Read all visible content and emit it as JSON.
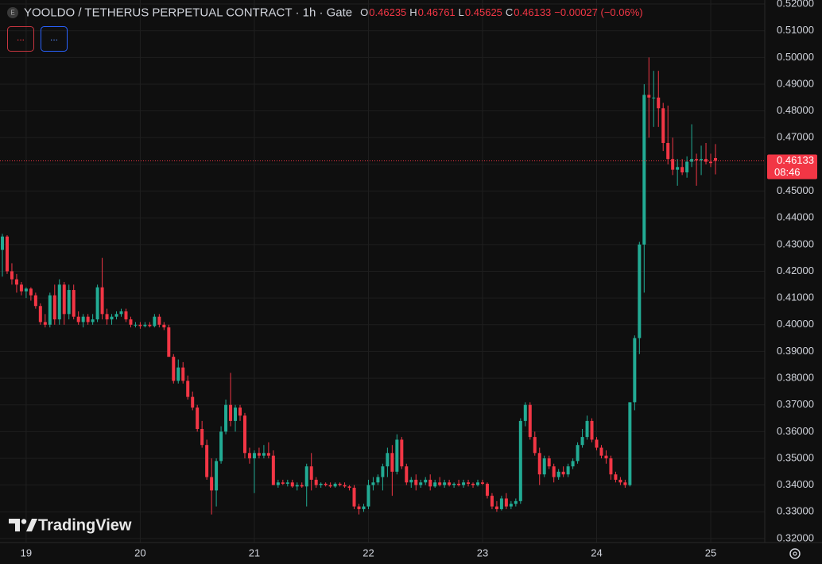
{
  "chart_data": {
    "type": "candlestick",
    "title": "YOOLDO / TETHERUS PERPETUAL CONTRACT · 1h · Gate",
    "badge": "E",
    "legend_labels": [
      "O",
      "H",
      "L",
      "C"
    ],
    "change_label": "−0.00027 (−0.06%)",
    "indicator_buttons": [
      "...",
      "..."
    ],
    "countdown": "08:46",
    "watermark": "TradingView",
    "up_color": "#22ab94",
    "down_color": "#f23645",
    "grid": true,
    "categories": [
      null,
      null,
      null,
      null,
      null,
      "19",
      null,
      null,
      null,
      null,
      null,
      null,
      null,
      null,
      null,
      null,
      null,
      null,
      null,
      null,
      null,
      null,
      null,
      null,
      null,
      null,
      null,
      null,
      null,
      "20",
      null,
      null,
      null,
      null,
      null,
      null,
      null,
      null,
      null,
      null,
      null,
      null,
      null,
      null,
      null,
      null,
      null,
      null,
      null,
      null,
      null,
      null,
      null,
      "21",
      null,
      null,
      null,
      null,
      null,
      null,
      null,
      null,
      null,
      null,
      null,
      null,
      null,
      null,
      null,
      null,
      null,
      null,
      null,
      null,
      null,
      null,
      null,
      "22",
      null,
      null,
      null,
      null,
      null,
      null,
      null,
      null,
      null,
      null,
      null,
      null,
      null,
      null,
      null,
      null,
      null,
      null,
      null,
      null,
      null,
      null,
      null,
      "23",
      null,
      null,
      null,
      null,
      null,
      null,
      null,
      null,
      null,
      null,
      null,
      null,
      null,
      null,
      null,
      null,
      null,
      null,
      null,
      null,
      null,
      null,
      null,
      "24",
      null,
      null,
      null,
      null,
      null,
      null,
      null,
      null,
      null,
      null,
      null,
      null,
      null,
      null,
      null,
      null,
      null,
      null,
      null,
      null,
      null,
      null,
      null,
      "25",
      null
    ],
    "open": [
      0.428,
      0.433,
      0.42,
      0.417,
      0.415,
      0.4125,
      0.4135,
      0.411,
      0.407,
      0.401,
      0.4,
      0.411,
      0.402,
      0.415,
      0.404,
      0.413,
      0.403,
      0.401,
      0.403,
      0.401,
      0.402,
      0.414,
      0.404,
      0.402,
      0.403,
      0.404,
      0.405,
      0.402,
      0.4,
      0.4,
      0.3995,
      0.4,
      0.3995,
      0.403,
      0.4,
      0.399,
      0.388,
      0.379,
      0.384,
      0.379,
      0.373,
      0.369,
      0.361,
      0.355,
      0.343,
      0.338,
      0.349,
      0.36,
      0.37,
      0.364,
      0.369,
      0.366,
      0.352,
      0.35,
      0.352,
      0.351,
      0.352,
      0.351,
      0.34,
      0.341,
      0.3405,
      0.341,
      0.3395,
      0.34,
      0.3395,
      0.347,
      0.342,
      0.34,
      0.3405,
      0.34,
      0.3395,
      0.3405,
      0.34,
      0.3395,
      0.339,
      0.332,
      0.331,
      0.332,
      0.34,
      0.341,
      0.343,
      0.347,
      0.352,
      0.345,
      0.357,
      0.347,
      0.341,
      0.342,
      0.34,
      0.341,
      0.342,
      0.3395,
      0.341,
      0.34,
      0.341,
      0.34,
      0.3405,
      0.34,
      0.341,
      0.3405,
      0.34,
      0.341,
      0.3405,
      0.336,
      0.332,
      0.331,
      0.335,
      0.332,
      0.333,
      0.334,
      0.364,
      0.37,
      0.358,
      0.352,
      0.344,
      0.35,
      0.347,
      0.343,
      0.345,
      0.344,
      0.347,
      0.349,
      0.355,
      0.358,
      0.364,
      0.357,
      0.354,
      0.351,
      0.35,
      0.344,
      0.342,
      0.341,
      0.34,
      0.371,
      0.395,
      0.43,
      0.486,
      0.485,
      0.485,
      0.481,
      0.468,
      0.462,
      0.458,
      0.459,
      0.457,
      0.461,
      0.462,
      0.4615,
      0.462,
      0.461,
      0.46235
    ],
    "high": [
      0.434,
      0.4335,
      0.423,
      0.419,
      0.416,
      0.414,
      0.414,
      0.412,
      0.408,
      0.404,
      0.412,
      0.415,
      0.417,
      0.416,
      0.415,
      0.415,
      0.405,
      0.404,
      0.404,
      0.404,
      0.415,
      0.425,
      0.406,
      0.404,
      0.405,
      0.406,
      0.406,
      0.403,
      0.401,
      0.401,
      0.401,
      0.401,
      0.404,
      0.404,
      0.401,
      0.4,
      0.389,
      0.387,
      0.386,
      0.381,
      0.375,
      0.37,
      0.364,
      0.357,
      0.35,
      0.35,
      0.362,
      0.372,
      0.382,
      0.37,
      0.37,
      0.367,
      0.354,
      0.353,
      0.354,
      0.355,
      0.356,
      0.353,
      0.342,
      0.342,
      0.342,
      0.342,
      0.341,
      0.341,
      0.348,
      0.352,
      0.343,
      0.341,
      0.341,
      0.341,
      0.341,
      0.341,
      0.341,
      0.34,
      0.34,
      0.333,
      0.333,
      0.342,
      0.343,
      0.344,
      0.348,
      0.354,
      0.355,
      0.359,
      0.358,
      0.348,
      0.343,
      0.344,
      0.342,
      0.343,
      0.344,
      0.342,
      0.343,
      0.342,
      0.342,
      0.341,
      0.342,
      0.342,
      0.342,
      0.341,
      0.342,
      0.342,
      0.341,
      0.337,
      0.334,
      0.336,
      0.337,
      0.334,
      0.335,
      0.365,
      0.371,
      0.371,
      0.36,
      0.354,
      0.351,
      0.351,
      0.348,
      0.346,
      0.347,
      0.348,
      0.35,
      0.356,
      0.361,
      0.366,
      0.365,
      0.358,
      0.355,
      0.353,
      0.351,
      0.345,
      0.343,
      0.342,
      0.371,
      0.396,
      0.431,
      0.49,
      0.5,
      0.495,
      0.495,
      0.483,
      0.482,
      0.47,
      0.462,
      0.462,
      0.463,
      0.475,
      0.464,
      0.467,
      0.468,
      0.464,
      0.46761
    ],
    "low": [
      0.418,
      0.419,
      0.415,
      0.412,
      0.411,
      0.41,
      0.409,
      0.406,
      0.4,
      0.399,
      0.399,
      0.4,
      0.4,
      0.4,
      0.402,
      0.402,
      0.4,
      0.399,
      0.4,
      0.4,
      0.401,
      0.402,
      0.4,
      0.4,
      0.402,
      0.403,
      0.401,
      0.399,
      0.399,
      0.3985,
      0.399,
      0.399,
      0.399,
      0.399,
      0.398,
      0.388,
      0.378,
      0.378,
      0.378,
      0.372,
      0.368,
      0.36,
      0.354,
      0.342,
      0.329,
      0.332,
      0.348,
      0.359,
      0.362,
      0.36,
      0.364,
      0.35,
      0.348,
      0.337,
      0.35,
      0.35,
      0.35,
      0.34,
      0.339,
      0.34,
      0.3395,
      0.339,
      0.338,
      0.339,
      0.332,
      0.338,
      0.339,
      0.339,
      0.3395,
      0.339,
      0.339,
      0.3395,
      0.339,
      0.338,
      0.331,
      0.329,
      0.33,
      0.331,
      0.338,
      0.34,
      0.338,
      0.343,
      0.336,
      0.344,
      0.346,
      0.34,
      0.339,
      0.338,
      0.339,
      0.34,
      0.338,
      0.339,
      0.3395,
      0.339,
      0.3395,
      0.339,
      0.3395,
      0.339,
      0.3395,
      0.339,
      0.3395,
      0.34,
      0.335,
      0.331,
      0.33,
      0.3305,
      0.331,
      0.331,
      0.332,
      0.333,
      0.362,
      0.357,
      0.351,
      0.34,
      0.343,
      0.346,
      0.341,
      0.342,
      0.343,
      0.343,
      0.346,
      0.348,
      0.354,
      0.357,
      0.356,
      0.353,
      0.35,
      0.348,
      0.342,
      0.341,
      0.34,
      0.339,
      0.3395,
      0.368,
      0.389,
      0.412,
      0.47,
      0.474,
      0.474,
      0.465,
      0.46,
      0.456,
      0.452,
      0.456,
      0.455,
      0.459,
      0.452,
      0.456,
      0.46,
      0.459,
      0.45625
    ],
    "close": [
      0.433,
      0.42,
      0.417,
      0.415,
      0.4125,
      0.4135,
      0.411,
      0.407,
      0.401,
      0.4,
      0.411,
      0.402,
      0.415,
      0.404,
      0.413,
      0.403,
      0.401,
      0.403,
      0.401,
      0.402,
      0.414,
      0.404,
      0.402,
      0.403,
      0.404,
      0.405,
      0.402,
      0.4,
      0.4,
      0.3995,
      0.4,
      0.3995,
      0.403,
      0.4,
      0.399,
      0.388,
      0.379,
      0.384,
      0.379,
      0.373,
      0.369,
      0.361,
      0.355,
      0.343,
      0.338,
      0.349,
      0.36,
      0.37,
      0.364,
      0.369,
      0.366,
      0.352,
      0.35,
      0.352,
      0.351,
      0.352,
      0.351,
      0.34,
      0.341,
      0.3405,
      0.341,
      0.3395,
      0.34,
      0.3395,
      0.347,
      0.342,
      0.34,
      0.3405,
      0.34,
      0.3395,
      0.3405,
      0.34,
      0.3395,
      0.339,
      0.332,
      0.331,
      0.332,
      0.34,
      0.341,
      0.343,
      0.347,
      0.352,
      0.345,
      0.357,
      0.347,
      0.341,
      0.342,
      0.34,
      0.341,
      0.342,
      0.3395,
      0.341,
      0.34,
      0.341,
      0.34,
      0.3405,
      0.34,
      0.341,
      0.3405,
      0.34,
      0.341,
      0.3405,
      0.336,
      0.332,
      0.331,
      0.335,
      0.332,
      0.333,
      0.334,
      0.364,
      0.37,
      0.358,
      0.352,
      0.344,
      0.35,
      0.347,
      0.343,
      0.345,
      0.344,
      0.347,
      0.349,
      0.355,
      0.358,
      0.364,
      0.357,
      0.354,
      0.351,
      0.35,
      0.344,
      0.342,
      0.341,
      0.34,
      0.371,
      0.395,
      0.43,
      0.486,
      0.485,
      0.485,
      0.481,
      0.468,
      0.462,
      0.458,
      0.459,
      0.457,
      0.461,
      0.462,
      0.4615,
      0.462,
      0.461,
      0.4605,
      0.46133
    ],
    "ylim": [
      0.3185,
      0.5215
    ],
    "yticks": [
      {
        "value": 0.32,
        "label": "0.32000"
      },
      {
        "value": 0.33,
        "label": "0.33000"
      },
      {
        "value": 0.34,
        "label": "0.34000"
      },
      {
        "value": 0.35,
        "label": "0.35000"
      },
      {
        "value": 0.36,
        "label": "0.36000"
      },
      {
        "value": 0.37,
        "label": "0.37000"
      },
      {
        "value": 0.38,
        "label": "0.38000"
      },
      {
        "value": 0.39,
        "label": "0.39000"
      },
      {
        "value": 0.4,
        "label": "0.40000"
      },
      {
        "value": 0.41,
        "label": "0.41000"
      },
      {
        "value": 0.42,
        "label": "0.42000"
      },
      {
        "value": 0.43,
        "label": "0.43000"
      },
      {
        "value": 0.44,
        "label": "0.44000"
      },
      {
        "value": 0.45,
        "label": "0.45000"
      },
      {
        "value": 0.46,
        "label": "0.46000"
      },
      {
        "value": 0.47,
        "label": "0.47000"
      },
      {
        "value": 0.48,
        "label": "0.48000"
      },
      {
        "value": 0.49,
        "label": "0.49000"
      },
      {
        "value": 0.5,
        "label": "0.50000"
      },
      {
        "value": 0.51,
        "label": "0.51000"
      },
      {
        "value": 0.52,
        "label": "0.52000"
      }
    ]
  }
}
